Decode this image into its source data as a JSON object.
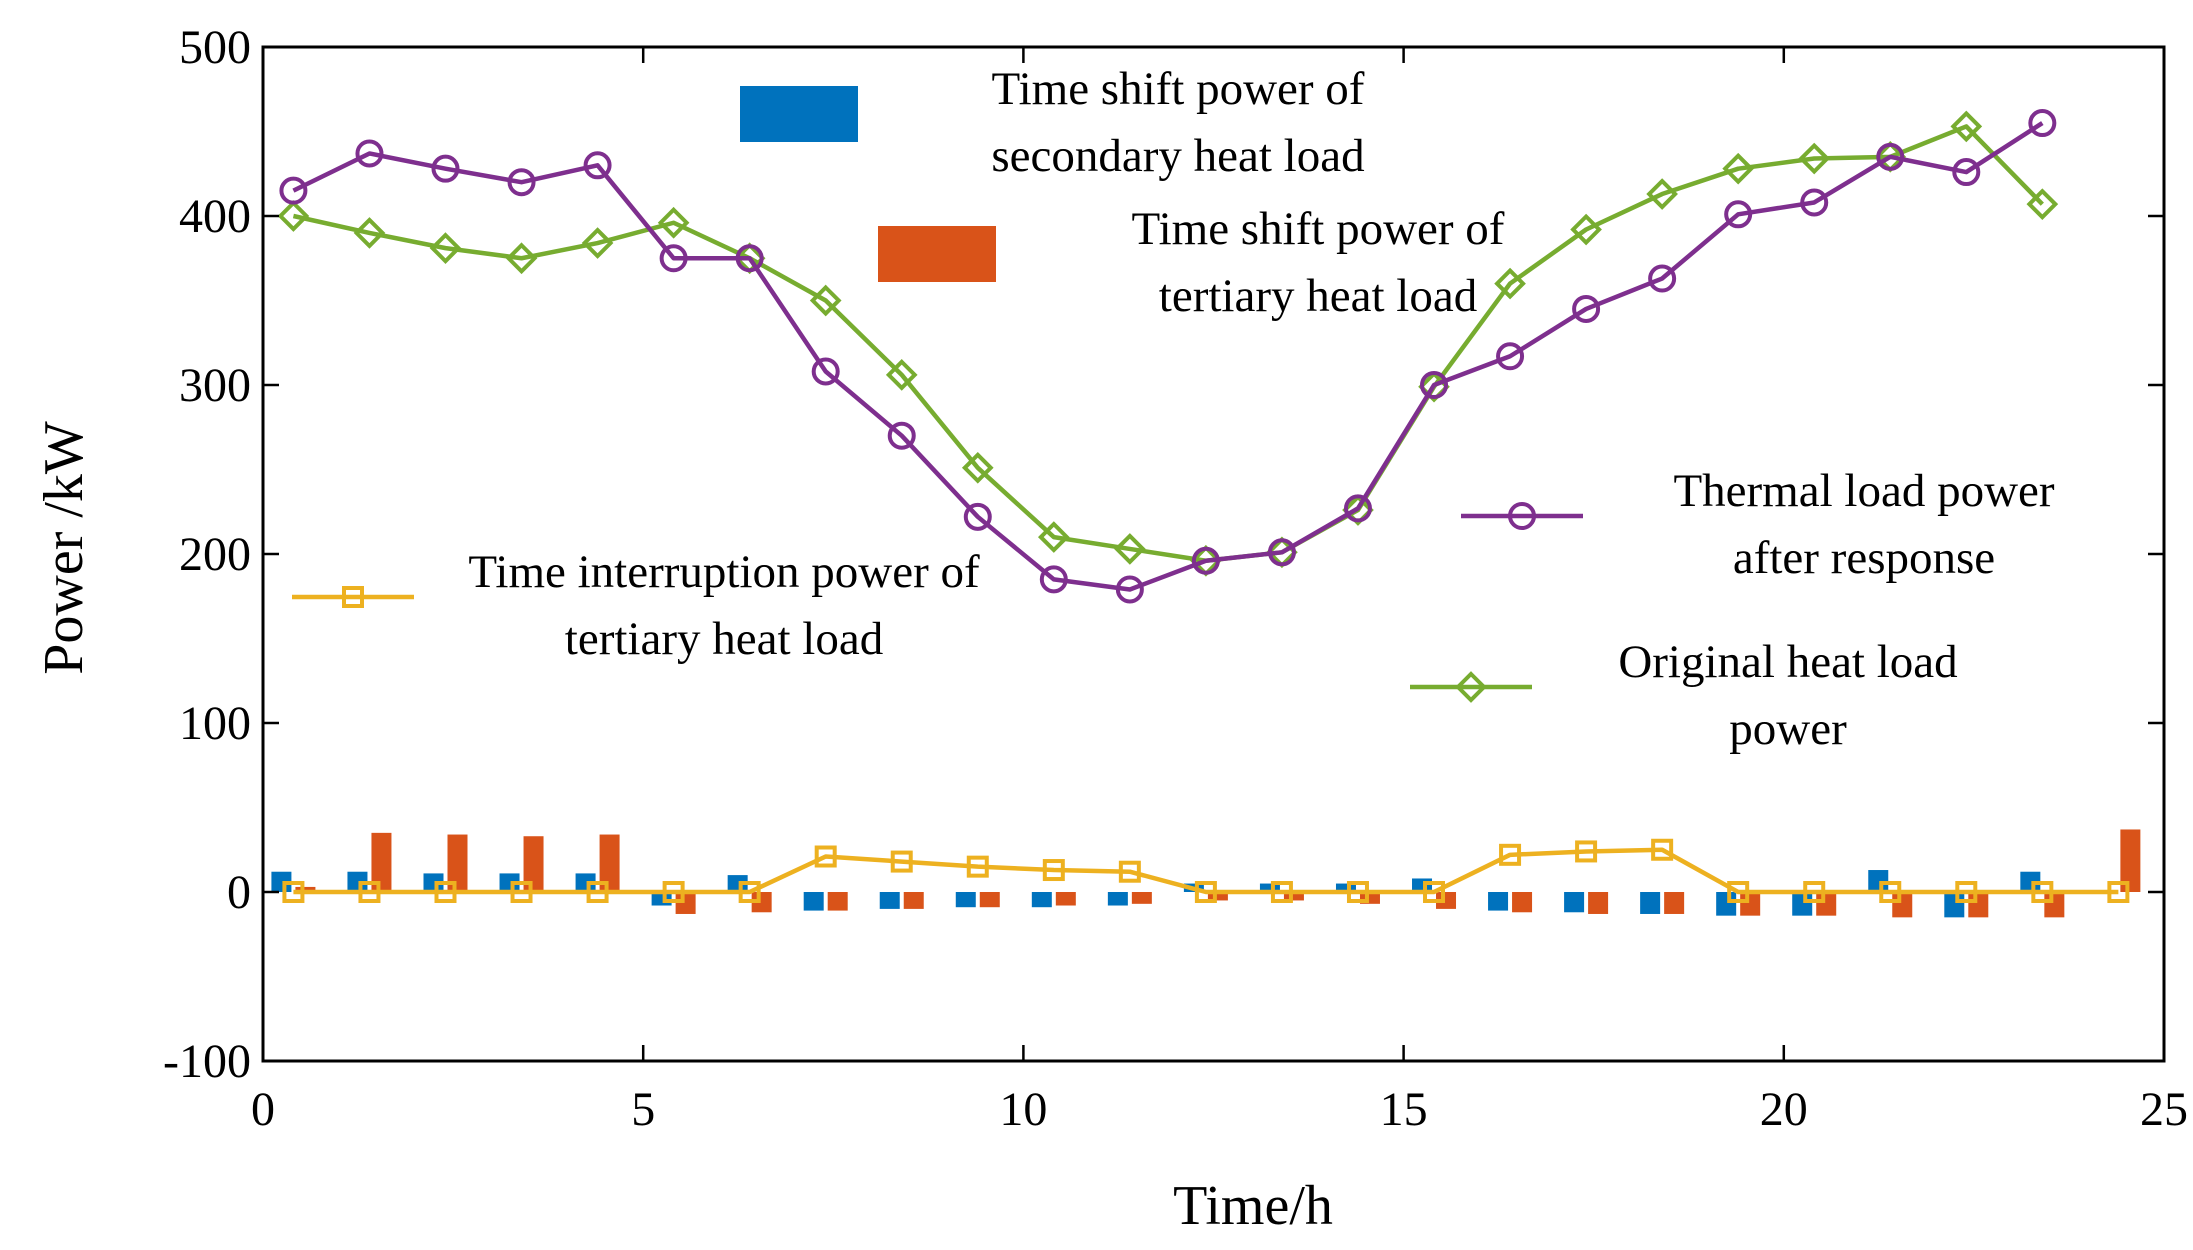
{
  "chart_data": {
    "type": "bar+line",
    "title": "",
    "xlabel": "Time/h",
    "ylabel": "Power /kW",
    "xlim": [
      0,
      25
    ],
    "ylim": [
      -100,
      500
    ],
    "xticks": [
      "0",
      "5",
      "10",
      "15",
      "20",
      "25"
    ],
    "yticks": [
      "-100",
      "0",
      "100",
      "200",
      "300",
      "400",
      "500"
    ],
    "grid": false,
    "x": [
      0.4,
      1.4,
      2.4,
      3.4,
      4.4,
      5.4,
      6.4,
      7.4,
      8.4,
      9.4,
      10.4,
      11.4,
      12.4,
      13.4,
      14.4,
      15.4,
      16.4,
      17.4,
      18.4,
      19.4,
      20.4,
      21.4,
      22.4,
      23.4,
      24.4
    ],
    "series": [
      {
        "name": "Time shift power of secondary heat load",
        "legend_lines": [
          "Time shift power of",
          "secondary heat load"
        ],
        "kind": "bar",
        "color": "#0072BD",
        "values": [
          12,
          12,
          11,
          11,
          11,
          -8,
          10,
          -11,
          -10,
          -9,
          -9,
          -8,
          5,
          5,
          5,
          8,
          -11,
          -12,
          -13,
          -14,
          -14,
          13,
          -15,
          12,
          0
        ]
      },
      {
        "name": "Time shift power of tertiary heat load",
        "legend_lines": [
          "Time shift power of",
          "tertiary heat load"
        ],
        "kind": "bar",
        "color": "#D95319",
        "values": [
          3,
          35,
          34,
          33,
          34,
          -13,
          -12,
          -11,
          -10,
          -9,
          -8,
          -7,
          -5,
          -5,
          -7,
          -10,
          -12,
          -13,
          -13,
          -14,
          -14,
          -15,
          -15,
          -15,
          37
        ]
      },
      {
        "name": "Time interruption power of tertiary heat load",
        "legend_lines": [
          "Time interruption power of",
          "tertiary heat load"
        ],
        "kind": "line",
        "marker": "square",
        "color": "#EDB120",
        "values": [
          0,
          0,
          0,
          0,
          0,
          0,
          0,
          21,
          18,
          15,
          13,
          12,
          0,
          0,
          0,
          0,
          22,
          24,
          25,
          0,
          0,
          0,
          0,
          0,
          0
        ]
      },
      {
        "name": "Thermal load power after response",
        "legend_lines": [
          "Thermal load power",
          "after response"
        ],
        "kind": "line",
        "marker": "circle",
        "color": "#7E2F8E",
        "values": [
          415,
          437,
          428,
          420,
          430,
          375,
          375,
          308,
          270,
          222,
          185,
          179,
          196,
          201,
          227,
          300,
          317,
          345,
          363,
          401,
          408,
          435,
          426,
          455,
          null
        ]
      },
      {
        "name": "Original heat load power",
        "legend_lines": [
          "Original heat load",
          "power"
        ],
        "kind": "line",
        "marker": "diamond",
        "color": "#77AC30",
        "values": [
          400,
          390,
          381,
          375,
          384,
          396,
          375,
          350,
          306,
          251,
          210,
          203,
          196,
          201,
          226,
          299,
          360,
          392,
          413,
          428,
          434,
          435,
          453,
          407,
          null
        ]
      }
    ]
  }
}
